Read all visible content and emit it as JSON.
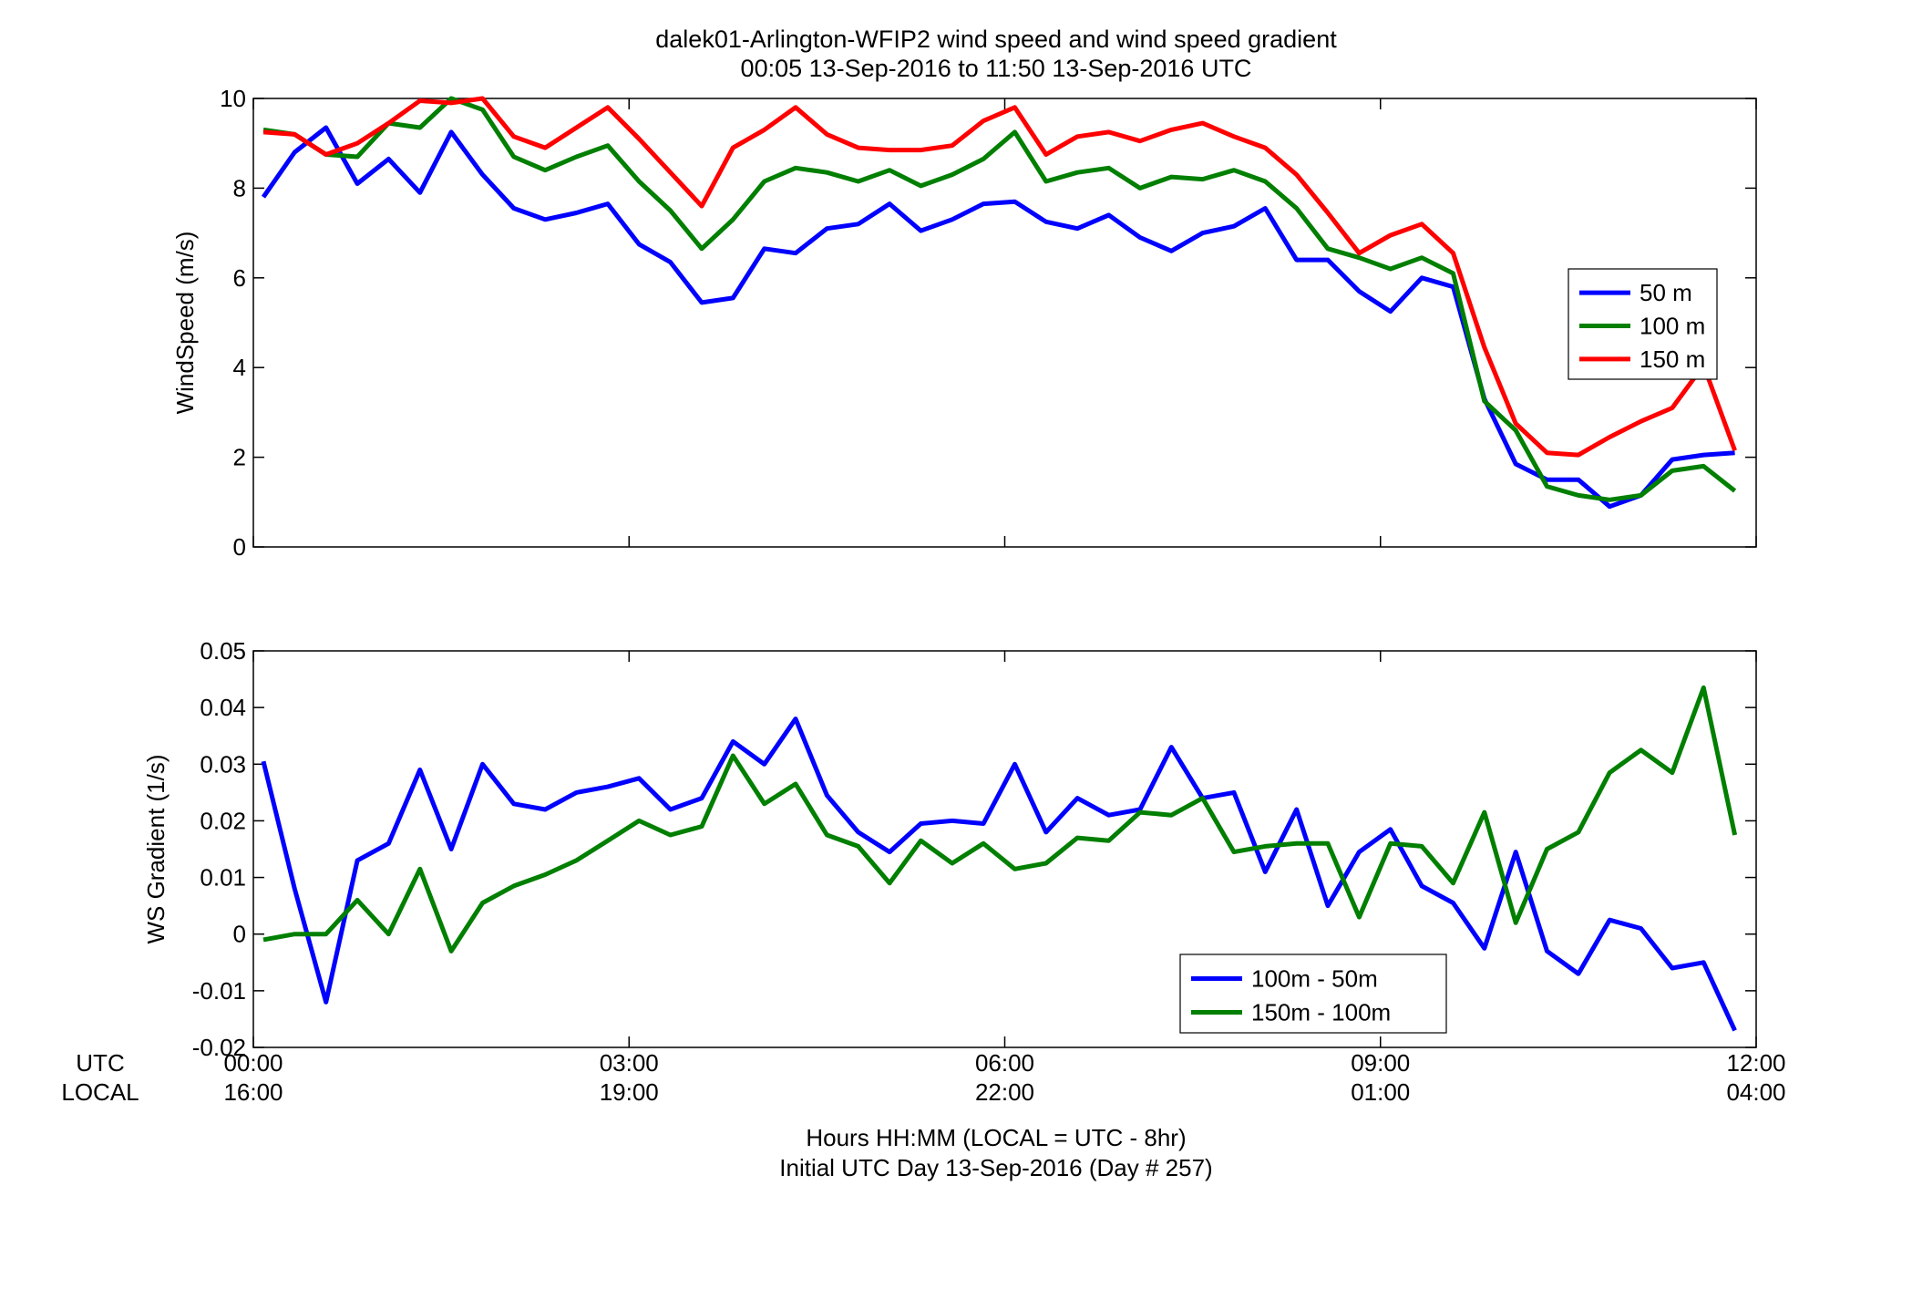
{
  "title_line1": "dalek01-Arlington-WFIP2  wind speed and wind speed gradient",
  "title_line2": "00:05 13-Sep-2016 to 11:50 13-Sep-2016  UTC",
  "xlabel_line1": "Hours HH:MM  (LOCAL = UTC - 8hr)",
  "xlabel_line2": "Initial UTC Day 13-Sep-2016 (Day # 257)",
  "row_labels": {
    "utc": "UTC",
    "local": "LOCAL"
  },
  "colors": {
    "blue": "#0000ff",
    "green": "#007f00",
    "red": "#ff0000"
  },
  "chart_data": [
    {
      "type": "line",
      "ylabel": "WindSpeed (m/s)",
      "xlim": [
        0,
        12
      ],
      "ylim": [
        0,
        10
      ],
      "grid": false,
      "legend_position": "right",
      "x_ticks": [
        {
          "x": 0,
          "utc": "00:00",
          "local": "16:00"
        },
        {
          "x": 3,
          "utc": "03:00",
          "local": "19:00"
        },
        {
          "x": 6,
          "utc": "06:00",
          "local": "22:00"
        },
        {
          "x": 9,
          "utc": "09:00",
          "local": "01:00"
        },
        {
          "x": 12,
          "utc": "12:00",
          "local": "04:00"
        }
      ],
      "y_ticks": [
        0,
        2,
        4,
        6,
        8,
        10
      ],
      "y_tick_labels": [
        "0",
        "2",
        "4",
        "6",
        "8",
        "10"
      ],
      "x": [
        0.08,
        0.33,
        0.58,
        0.83,
        1.08,
        1.33,
        1.58,
        1.83,
        2.08,
        2.33,
        2.58,
        2.83,
        3.08,
        3.33,
        3.58,
        3.83,
        4.08,
        4.33,
        4.58,
        4.83,
        5.08,
        5.33,
        5.58,
        5.83,
        6.08,
        6.33,
        6.58,
        6.83,
        7.08,
        7.33,
        7.58,
        7.83,
        8.08,
        8.33,
        8.58,
        8.83,
        9.08,
        9.33,
        9.58,
        9.83,
        10.08,
        10.33,
        10.58,
        10.83,
        11.08,
        11.33,
        11.58,
        11.83
      ],
      "series": [
        {
          "name": "50 m",
          "color": "#0000ff",
          "values": [
            7.8,
            8.8,
            9.35,
            8.1,
            8.65,
            7.9,
            9.25,
            8.3,
            7.55,
            7.3,
            7.45,
            7.65,
            6.75,
            6.35,
            5.45,
            5.55,
            6.65,
            6.55,
            7.1,
            7.2,
            7.65,
            7.05,
            7.3,
            7.65,
            7.7,
            7.25,
            7.1,
            7.4,
            6.9,
            6.6,
            7.0,
            7.15,
            7.55,
            6.4,
            6.4,
            5.7,
            5.25,
            6.0,
            5.8,
            3.3,
            1.85,
            1.5,
            1.5,
            0.9,
            1.15,
            1.95,
            2.05,
            2.1
          ]
        },
        {
          "name": "100 m",
          "color": "#007f00",
          "values": [
            9.3,
            9.2,
            8.75,
            8.7,
            9.45,
            9.35,
            10.0,
            9.75,
            8.7,
            8.4,
            8.7,
            8.95,
            8.15,
            7.5,
            6.65,
            7.3,
            8.15,
            8.45,
            8.35,
            8.15,
            8.4,
            8.05,
            8.3,
            8.65,
            9.25,
            8.15,
            8.35,
            8.45,
            8.0,
            8.25,
            8.2,
            8.4,
            8.15,
            7.55,
            6.65,
            6.45,
            6.2,
            6.45,
            6.1,
            3.25,
            2.6,
            1.35,
            1.15,
            1.05,
            1.15,
            1.7,
            1.8,
            1.25
          ]
        },
        {
          "name": "150 m",
          "color": "#ff0000",
          "values": [
            9.25,
            9.2,
            8.75,
            9.0,
            9.45,
            9.95,
            9.9,
            10.0,
            9.15,
            8.9,
            9.35,
            9.8,
            9.1,
            8.35,
            7.6,
            8.9,
            9.3,
            9.8,
            9.2,
            8.9,
            8.85,
            8.85,
            8.95,
            9.5,
            9.8,
            8.75,
            9.15,
            9.25,
            9.05,
            9.3,
            9.45,
            9.15,
            8.9,
            8.3,
            7.45,
            6.55,
            6.95,
            7.2,
            6.55,
            4.45,
            2.75,
            2.1,
            2.05,
            2.45,
            2.8,
            3.1,
            4.05,
            2.15
          ]
        }
      ]
    },
    {
      "type": "line",
      "ylabel": "WS Gradient (1/s)",
      "xlim": [
        0,
        12
      ],
      "ylim": [
        -0.02,
        0.05
      ],
      "grid": false,
      "legend_position": "bottom-right",
      "x_ticks": [
        {
          "x": 0,
          "utc": "00:00",
          "local": "16:00"
        },
        {
          "x": 3,
          "utc": "03:00",
          "local": "19:00"
        },
        {
          "x": 6,
          "utc": "06:00",
          "local": "22:00"
        },
        {
          "x": 9,
          "utc": "09:00",
          "local": "01:00"
        },
        {
          "x": 12,
          "utc": "12:00",
          "local": "04:00"
        }
      ],
      "y_ticks": [
        -0.02,
        -0.01,
        0,
        0.01,
        0.02,
        0.03,
        0.04,
        0.05
      ],
      "y_tick_labels": [
        "-0.02",
        "-0.01",
        "0",
        "0.01",
        "0.02",
        "0.03",
        "0.04",
        "0.05"
      ],
      "x": [
        0.08,
        0.33,
        0.58,
        0.83,
        1.08,
        1.33,
        1.58,
        1.83,
        2.08,
        2.33,
        2.58,
        2.83,
        3.08,
        3.33,
        3.58,
        3.83,
        4.08,
        4.33,
        4.58,
        4.83,
        5.08,
        5.33,
        5.58,
        5.83,
        6.08,
        6.33,
        6.58,
        6.83,
        7.08,
        7.33,
        7.58,
        7.83,
        8.08,
        8.33,
        8.58,
        8.83,
        9.08,
        9.33,
        9.58,
        9.83,
        10.08,
        10.33,
        10.58,
        10.83,
        11.08,
        11.33,
        11.58,
        11.83
      ],
      "series": [
        {
          "name": "100m - 50m",
          "color": "#0000ff",
          "values": [
            0.0305,
            0.008,
            -0.012,
            0.013,
            0.016,
            0.029,
            0.015,
            0.03,
            0.023,
            0.022,
            0.025,
            0.026,
            0.0275,
            0.022,
            0.024,
            0.034,
            0.03,
            0.038,
            0.0245,
            0.018,
            0.0145,
            0.0195,
            0.02,
            0.0195,
            0.03,
            0.018,
            0.024,
            0.021,
            0.022,
            0.033,
            0.024,
            0.025,
            0.011,
            0.022,
            0.005,
            0.0145,
            0.0185,
            0.0085,
            0.0055,
            -0.0025,
            0.0145,
            -0.003,
            -0.007,
            0.0025,
            0.001,
            -0.006,
            -0.005,
            -0.017
          ]
        },
        {
          "name": "150m - 100m",
          "color": "#007f00",
          "values": [
            -0.001,
            0.0,
            0.0,
            0.006,
            0.0,
            0.0115,
            -0.003,
            0.0055,
            0.0085,
            0.0105,
            0.013,
            0.0165,
            0.02,
            0.0175,
            0.019,
            0.0315,
            0.023,
            0.0265,
            0.0175,
            0.0155,
            0.009,
            0.0165,
            0.0125,
            0.016,
            0.0115,
            0.0125,
            0.017,
            0.0165,
            0.0215,
            0.021,
            0.024,
            0.0145,
            0.0155,
            0.016,
            0.016,
            0.003,
            0.016,
            0.0155,
            0.009,
            0.0215,
            0.002,
            0.015,
            0.018,
            0.0285,
            0.0325,
            0.0285,
            0.0435,
            0.0175
          ]
        }
      ]
    }
  ]
}
